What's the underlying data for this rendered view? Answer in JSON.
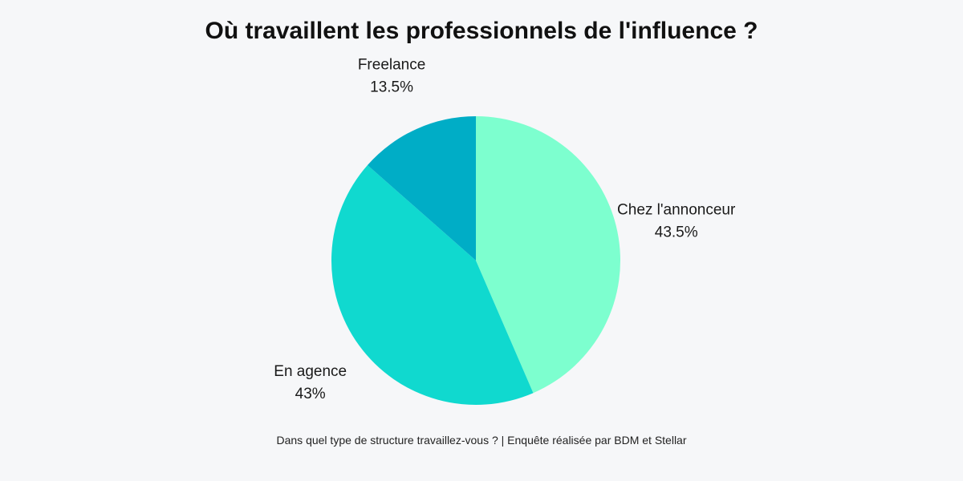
{
  "chart_data": {
    "type": "pie",
    "title": "Où travaillent les professionnels de l'influence ?",
    "caption": "Dans quel type de structure travaillez-vous ? | Enquête réalisée par BDM et Stellar",
    "slices": [
      {
        "label": "Chez l'annonceur",
        "value": 43.5,
        "display": "43.5%",
        "color": "#7dffcf"
      },
      {
        "label": "En agence",
        "value": 43,
        "display": "43%",
        "color": "#10d9cf"
      },
      {
        "label": "Freelance",
        "value": 13.5,
        "display": "13.5%",
        "color": "#00adc6"
      }
    ],
    "start": "top",
    "direction": "clockwise"
  }
}
